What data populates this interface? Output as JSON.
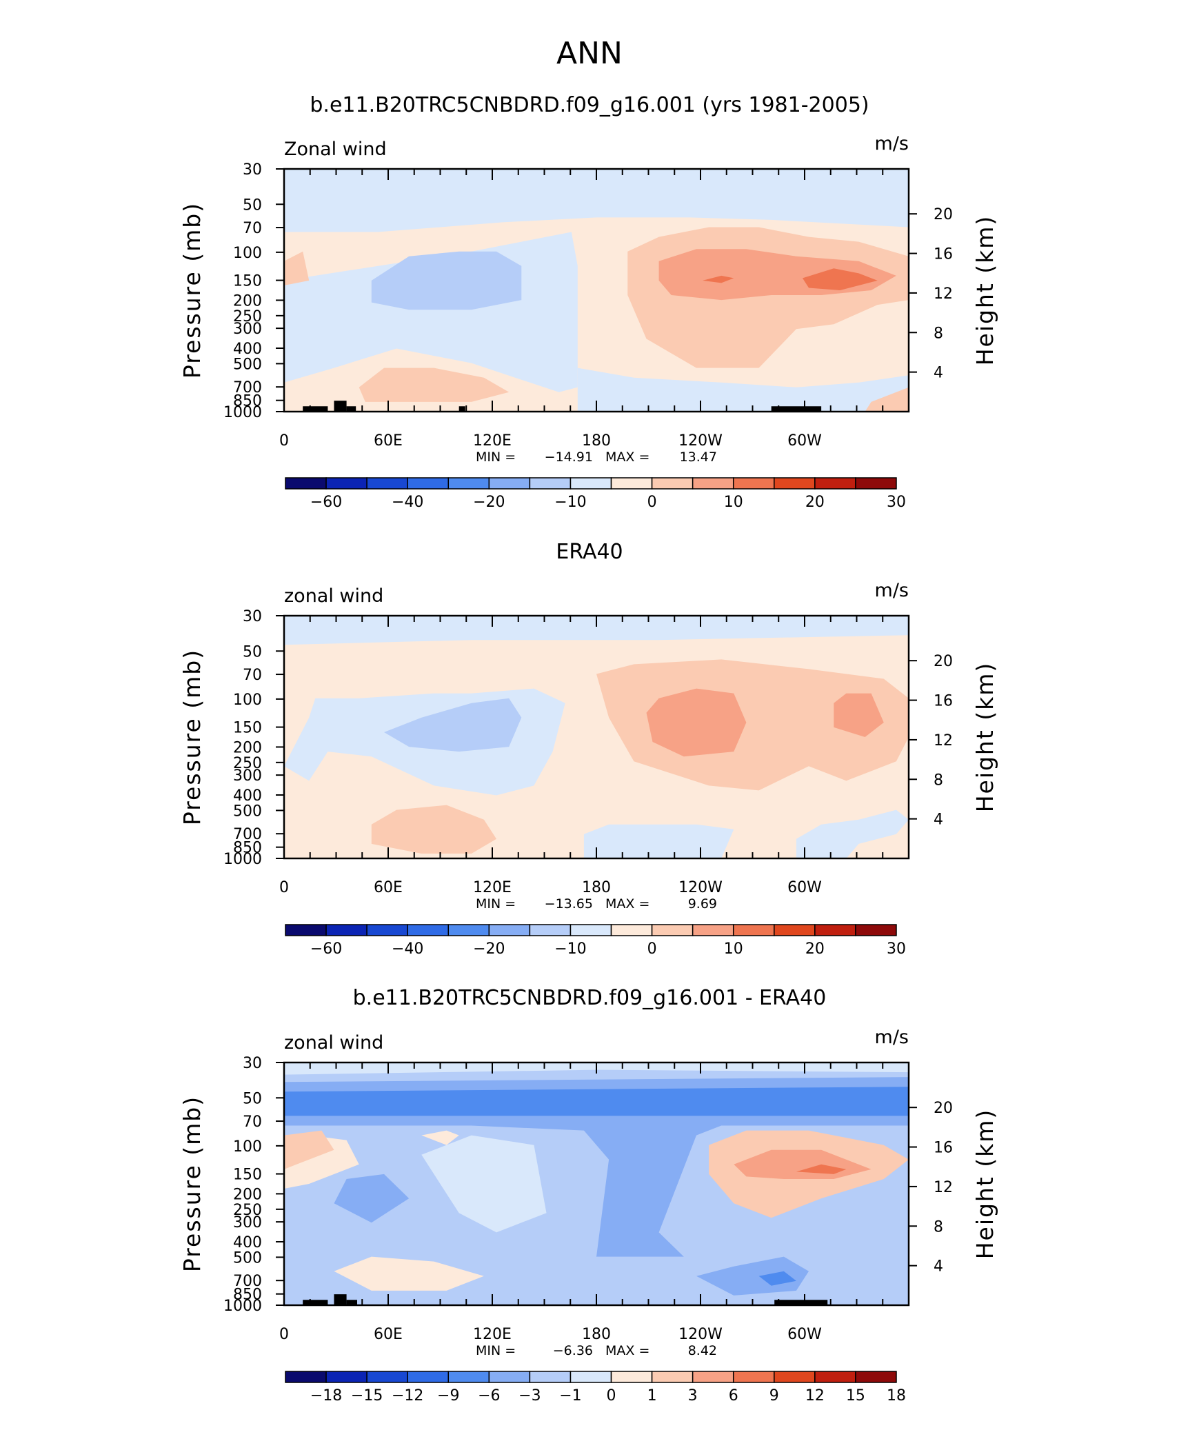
{
  "figure_title": "ANN",
  "colors": {
    "palette": [
      "#0a0a6e",
      "#0b24b4",
      "#1848d2",
      "#2f6be6",
      "#4f8bef",
      "#86adf4",
      "#b5cdf8",
      "#d9e8fb",
      "#fdeadb",
      "#fbcbb2",
      "#f7a286",
      "#ef7550",
      "#e0471e",
      "#c01f0f",
      "#8e0a0a"
    ],
    "land": "#000000",
    "axis": "#000000"
  },
  "chart_data": [
    {
      "type": "contour",
      "title": "b.e11.B20TRC5CNBDRD.f09_g16.001 (yrs 1981-2005)",
      "variable_label": "Zonal wind",
      "units_label": "m/s",
      "ylabel_left": "Pressure  (mb)",
      "ylabel_right": "Height  (km)",
      "x_ticks": [
        "0",
        "60E",
        "120E",
        "180",
        "120W",
        "60W"
      ],
      "y_ticks": [
        "30",
        "50",
        "70",
        "100",
        "150",
        "200",
        "250",
        "300",
        "400",
        "500",
        "700",
        "850",
        "1000"
      ],
      "height_ticks": [
        "20",
        "16",
        "12",
        "8",
        "4"
      ],
      "min_label": "MIN  =",
      "min_value": "−14.91",
      "max_label": "MAX  =",
      "max_value": "13.47",
      "colorbar_labels": [
        "−60",
        "−40",
        "−20",
        "−10",
        "0",
        "10",
        "20",
        "30"
      ]
    },
    {
      "type": "contour",
      "title": "ERA40",
      "variable_label": "zonal wind",
      "units_label": "m/s",
      "ylabel_left": "Pressure  (mb)",
      "ylabel_right": "Height  (km)",
      "x_ticks": [
        "0",
        "60E",
        "120E",
        "180",
        "120W",
        "60W"
      ],
      "y_ticks": [
        "30",
        "50",
        "70",
        "100",
        "150",
        "200",
        "250",
        "300",
        "400",
        "500",
        "700",
        "850",
        "1000"
      ],
      "height_ticks": [
        "20",
        "16",
        "12",
        "8",
        "4"
      ],
      "min_label": "MIN  =",
      "min_value": "−13.65",
      "max_label": "MAX  =",
      "max_value": "9.69",
      "colorbar_labels": [
        "−60",
        "−40",
        "−20",
        "−10",
        "0",
        "10",
        "20",
        "30"
      ]
    },
    {
      "type": "contour",
      "title": "b.e11.B20TRC5CNBDRD.f09_g16.001 - ERA40",
      "variable_label": "zonal wind",
      "units_label": "m/s",
      "ylabel_left": "Pressure  (mb)",
      "ylabel_right": "Height  (km)",
      "x_ticks": [
        "0",
        "60E",
        "120E",
        "180",
        "120W",
        "60W"
      ],
      "y_ticks": [
        "30",
        "50",
        "70",
        "100",
        "150",
        "200",
        "250",
        "300",
        "400",
        "500",
        "700",
        "850",
        "1000"
      ],
      "height_ticks": [
        "20",
        "16",
        "12",
        "8",
        "4"
      ],
      "min_label": "MIN  =",
      "min_value": "−6.36",
      "max_label": "MAX  =",
      "max_value": "8.42",
      "colorbar_labels": [
        "−18",
        "−15",
        "−12",
        "−9",
        "−6",
        "−3",
        "−1",
        "0",
        "1",
        "3",
        "6",
        "9",
        "12",
        "15",
        "18"
      ]
    }
  ]
}
